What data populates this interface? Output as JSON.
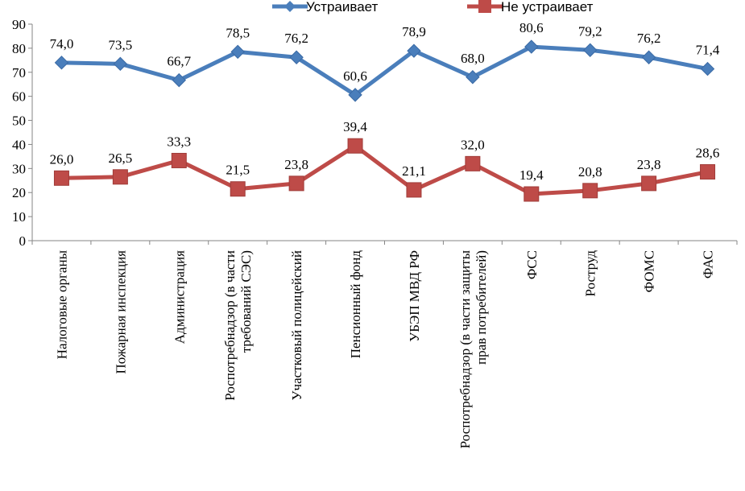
{
  "chart_data": {
    "type": "line",
    "title": "",
    "xlabel": "",
    "ylabel": "",
    "ylim": [
      0,
      90
    ],
    "yticks": [
      0,
      10,
      20,
      30,
      40,
      50,
      60,
      70,
      80,
      90
    ],
    "grid": false,
    "legend_position": "top",
    "categories": [
      [
        "Налоговые органы"
      ],
      [
        "Пожарная инспекция"
      ],
      [
        "Администрация"
      ],
      [
        "Роспотребнадзор (в части",
        "требований СЭС)"
      ],
      [
        "Участковый полицейский"
      ],
      [
        "Пенсионный фонд"
      ],
      [
        "УБЭП МВД РФ"
      ],
      [
        "Роспотребнадзор (в части защиты",
        "прав потребителей)"
      ],
      [
        "ФСС"
      ],
      [
        "Роструд"
      ],
      [
        "ФОМС"
      ],
      [
        "ФАС"
      ]
    ],
    "series": [
      {
        "name": "Устраивает",
        "color": "#4a7ebb",
        "marker": "diamond",
        "values": [
          74.0,
          73.5,
          66.7,
          78.5,
          76.2,
          60.6,
          78.9,
          68.0,
          80.6,
          79.2,
          76.2,
          71.4
        ],
        "labels": [
          "74,0",
          "73,5",
          "66,7",
          "78,5",
          "76,2",
          "60,6",
          "78,9",
          "68,0",
          "80,6",
          "79,2",
          "76,2",
          "71,4"
        ]
      },
      {
        "name": "Не устраивает",
        "color": "#be4b48",
        "marker": "square",
        "values": [
          26.0,
          26.5,
          33.3,
          21.5,
          23.8,
          39.4,
          21.1,
          32.0,
          19.4,
          20.8,
          23.8,
          28.6
        ],
        "labels": [
          "26,0",
          "26,5",
          "33,3",
          "21,5",
          "23,8",
          "39,4",
          "21,1",
          "32,0",
          "19,4",
          "20,8",
          "23,8",
          "28,6"
        ]
      }
    ]
  }
}
